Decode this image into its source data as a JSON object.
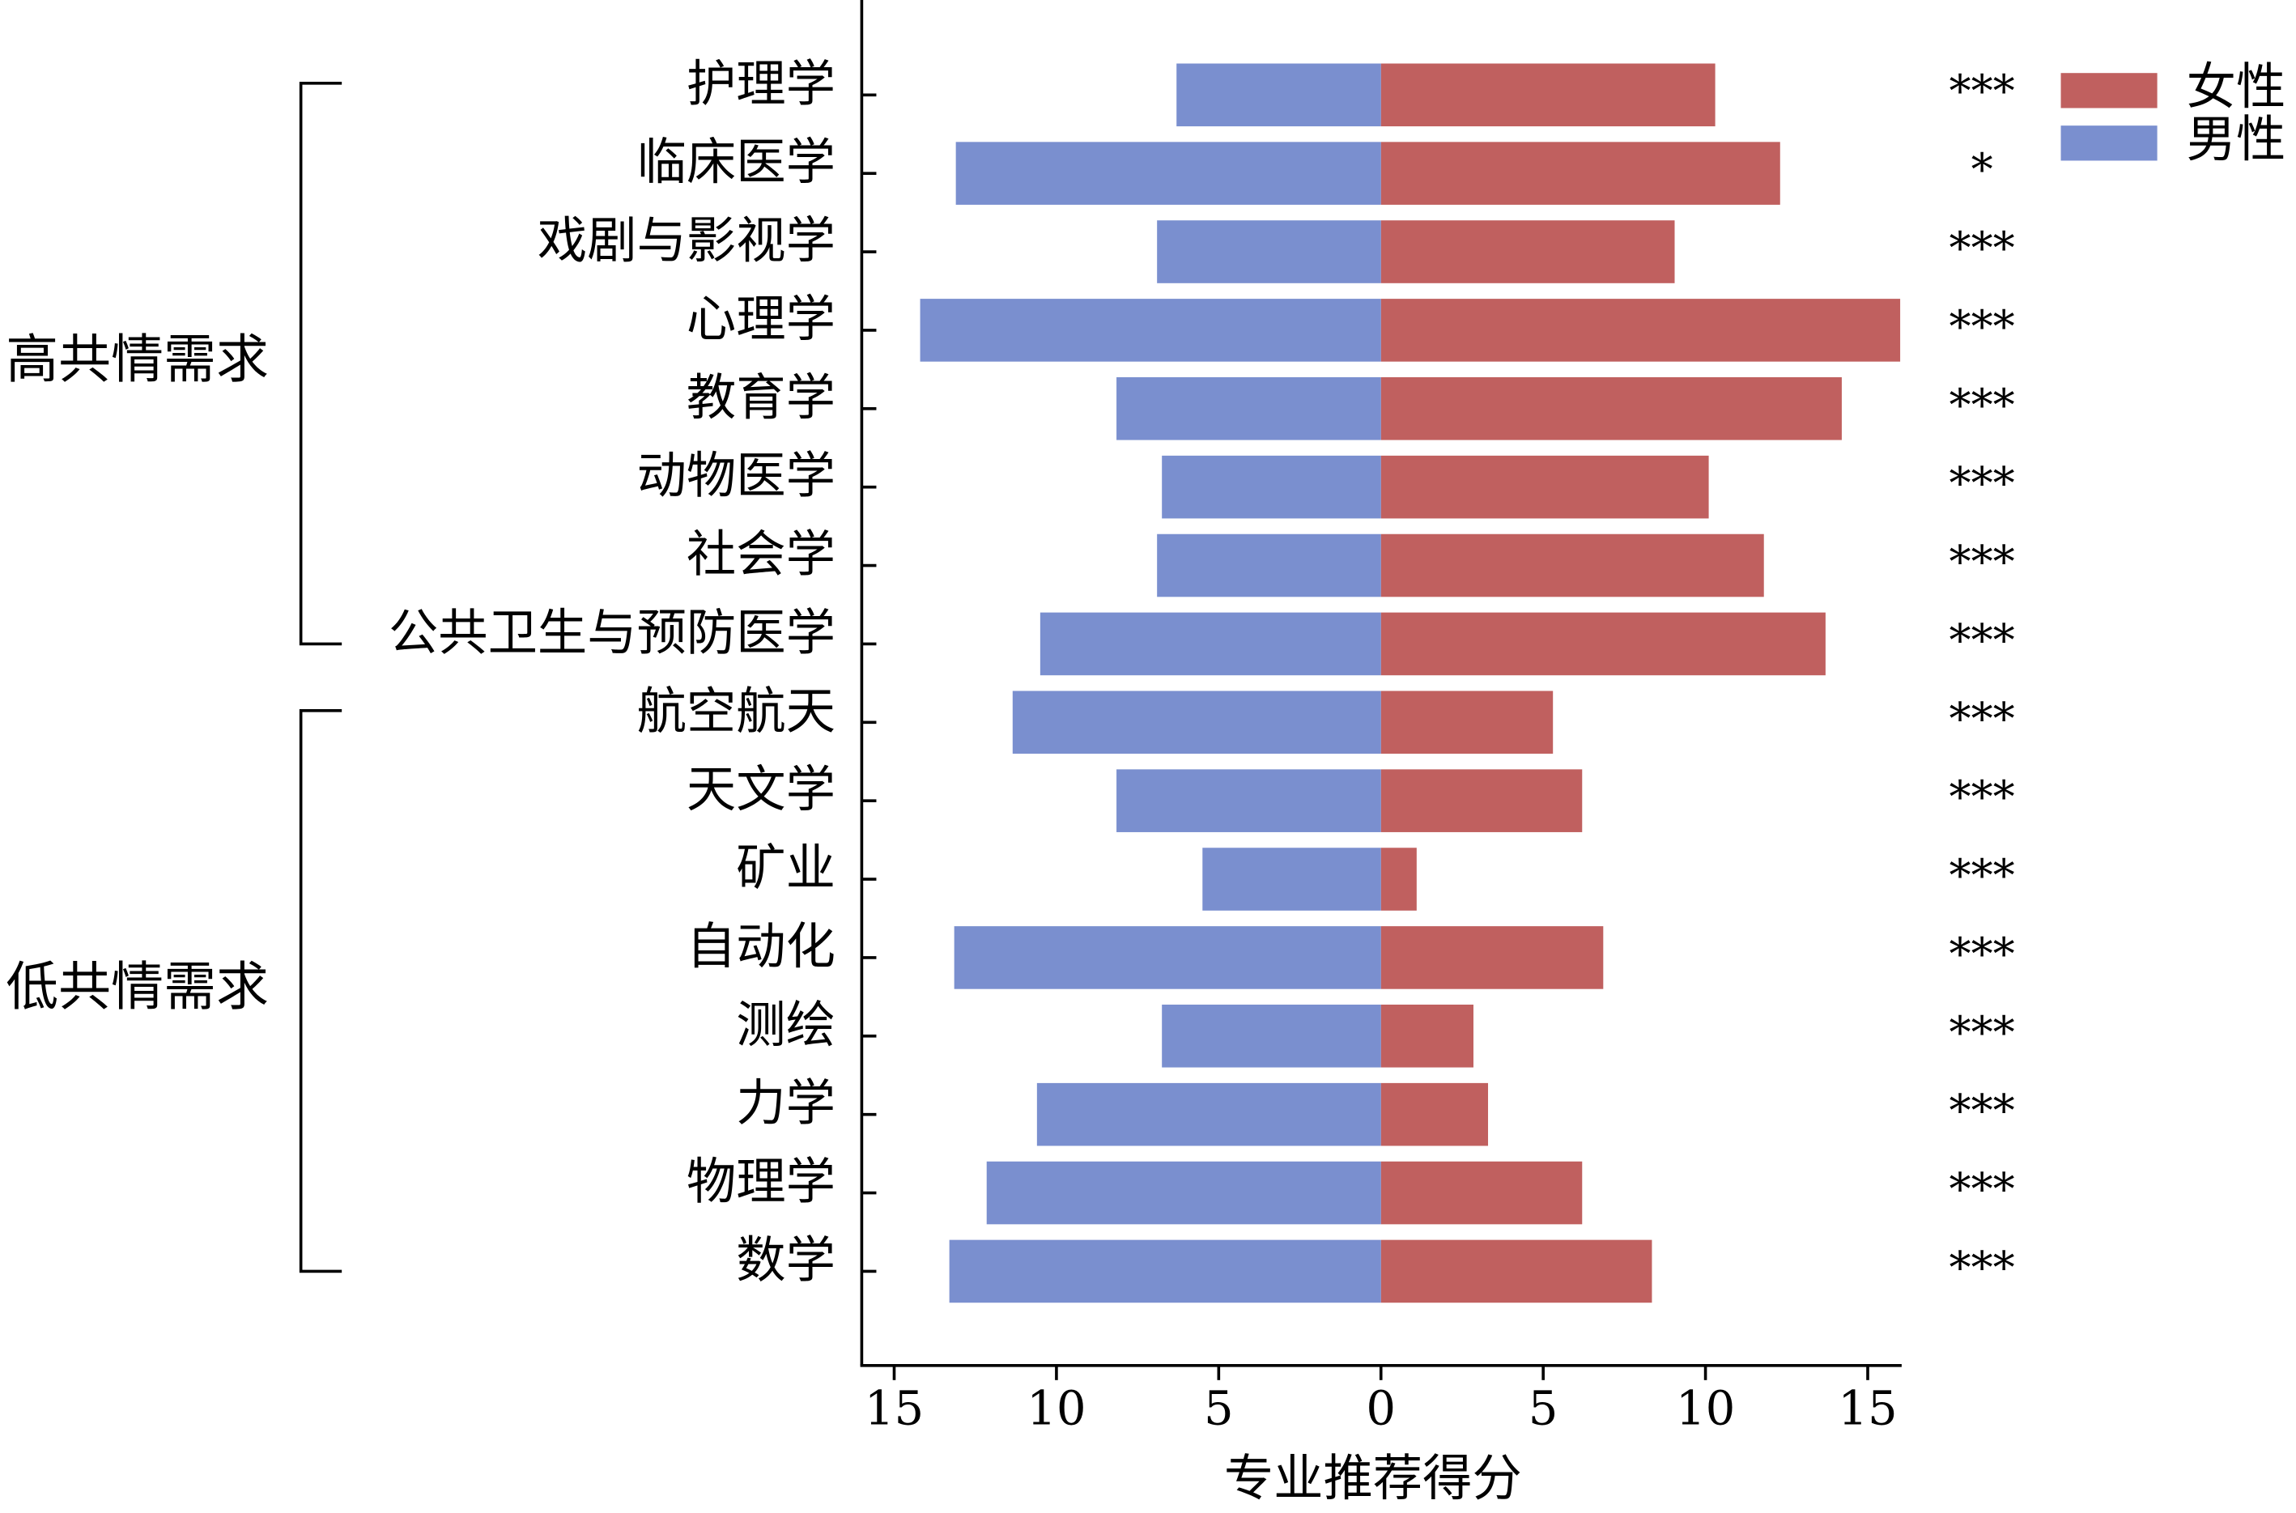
{
  "chart_data": {
    "type": "bar",
    "orientation": "horizontal",
    "x_label": "专业推荐得分",
    "categories": [
      "护理学",
      "临床医学",
      "戏剧与影视学",
      "心理学",
      "教育学",
      "动物医学",
      "社会学",
      "公共卫生与预防医学",
      "航空航天",
      "天文学",
      "矿业",
      "自动化",
      "测绘",
      "力学",
      "物理学",
      "数学"
    ],
    "series": [
      {
        "name": "女性",
        "color": "#c0605f",
        "values": [
          10.3,
          12.3,
          9.05,
          16.0,
          14.2,
          10.1,
          11.8,
          13.7,
          5.3,
          6.2,
          1.1,
          6.85,
          2.85,
          3.3,
          6.2,
          8.35
        ]
      },
      {
        "name": "男性",
        "color": "#7a8fcf",
        "values": [
          -6.3,
          -13.1,
          -6.9,
          -14.2,
          -8.15,
          -6.75,
          -6.9,
          -10.5,
          -11.35,
          -8.15,
          -5.5,
          -13.15,
          -6.75,
          -10.6,
          -12.15,
          -13.3
        ]
      }
    ],
    "significance": [
      "***",
      "*",
      "***",
      "***",
      "***",
      "***",
      "***",
      "***",
      "***",
      "***",
      "***",
      "***",
      "***",
      "***",
      "***",
      "***"
    ],
    "groups": [
      {
        "label": "高共情需求"
      },
      {
        "label": "低共情需求"
      }
    ],
    "xlim": [
      -16,
      16
    ],
    "xticks": [
      {
        "value": -15,
        "label": "15"
      },
      {
        "value": -10,
        "label": "10"
      },
      {
        "value": -5,
        "label": "5"
      },
      0,
      5,
      10,
      {
        "value": 15,
        "label": "15"
      }
    ],
    "legend": "top-right"
  }
}
